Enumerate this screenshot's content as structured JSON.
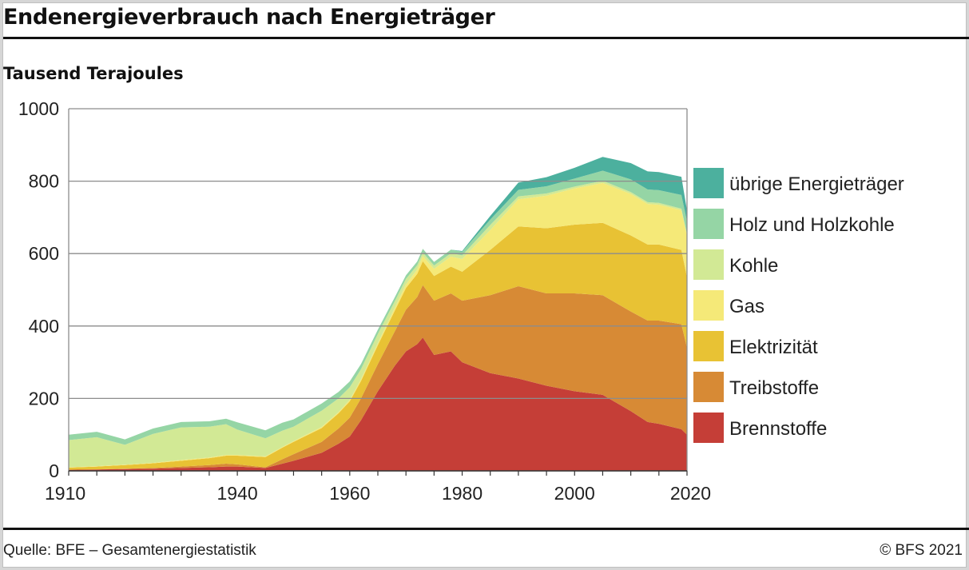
{
  "header": {
    "title": "Endenergieverbrauch nach Energieträger",
    "unit_label": "Tausend Terajoules"
  },
  "footer": {
    "source": "Quelle: BFE – Gesamtenergiestatistik",
    "copyright": "© BFS 2021"
  },
  "colors": {
    "Brennstoffe": "#c53e37",
    "Treibstoffe": "#d78a35",
    "Elektrizität": "#e8c234",
    "Gas": "#f5e978",
    "Kohle": "#d2e995",
    "Holz und Holzkohle": "#95d5a5",
    "übrige Energieträger": "#4cb09e"
  },
  "chart_data": {
    "type": "area",
    "stacked": true,
    "title": "Endenergieverbrauch nach Energieträger",
    "ylabel": "Tausend Terajoules",
    "xlabel": "",
    "xlim": [
      1910,
      2020
    ],
    "ylim": [
      0,
      1000
    ],
    "y_ticks": [
      0,
      200,
      400,
      600,
      800,
      1000
    ],
    "x_ticks": [
      1910,
      1940,
      1960,
      1980,
      2000,
      2020
    ],
    "grid": true,
    "legend_position": "right",
    "legend_order": [
      "übrige Energieträger",
      "Holz und Holzkohle",
      "Kohle",
      "Gas",
      "Elektrizität",
      "Treibstoffe",
      "Brennstoffe"
    ],
    "x": [
      1910,
      1915,
      1920,
      1925,
      1930,
      1935,
      1938,
      1940,
      1945,
      1948,
      1950,
      1955,
      1958,
      1960,
      1962,
      1965,
      1968,
      1970,
      1972,
      1973,
      1975,
      1978,
      1980,
      1985,
      1990,
      1995,
      2000,
      2005,
      2010,
      2013,
      2015,
      2019,
      2020
    ],
    "series": [
      {
        "name": "Brennstoffe",
        "values": [
          3,
          4,
          5,
          6,
          8,
          10,
          12,
          12,
          8,
          20,
          28,
          50,
          75,
          95,
          140,
          220,
          290,
          330,
          350,
          368,
          320,
          330,
          300,
          270,
          255,
          235,
          220,
          210,
          165,
          135,
          130,
          115,
          100
        ]
      },
      {
        "name": "Treibstoffe",
        "values": [
          0,
          0,
          1,
          2,
          4,
          6,
          8,
          6,
          2,
          12,
          18,
          30,
          42,
          52,
          60,
          75,
          95,
          115,
          130,
          145,
          150,
          160,
          170,
          215,
          255,
          255,
          270,
          275,
          275,
          280,
          285,
          290,
          240
        ]
      },
      {
        "name": "Elektrizität",
        "values": [
          6,
          8,
          10,
          13,
          16,
          19,
          22,
          24,
          28,
          32,
          34,
          38,
          42,
          45,
          48,
          52,
          57,
          60,
          64,
          66,
          68,
          74,
          80,
          125,
          165,
          180,
          190,
          200,
          210,
          210,
          210,
          205,
          195
        ]
      },
      {
        "name": "Gas",
        "values": [
          1,
          1,
          1,
          1,
          2,
          2,
          2,
          2,
          2,
          2,
          2,
          3,
          3,
          4,
          5,
          6,
          8,
          10,
          12,
          14,
          20,
          28,
          35,
          55,
          75,
          90,
          100,
          110,
          115,
          112,
          110,
          110,
          115
        ]
      },
      {
        "name": "Kohle",
        "values": [
          75,
          80,
          55,
          80,
          90,
          85,
          85,
          70,
          50,
          45,
          40,
          45,
          38,
          35,
          28,
          25,
          18,
          15,
          12,
          10,
          9,
          9,
          10,
          14,
          8,
          6,
          5,
          6,
          5,
          5,
          5,
          4,
          4
        ]
      },
      {
        "name": "Holz und Holzkohle",
        "values": [
          15,
          15,
          15,
          15,
          15,
          15,
          15,
          20,
          22,
          22,
          20,
          20,
          18,
          16,
          14,
          12,
          11,
          10,
          10,
          10,
          10,
          10,
          10,
          15,
          18,
          20,
          22,
          28,
          35,
          35,
          35,
          38,
          35
        ]
      },
      {
        "name": "übrige Energieträger",
        "values": [
          0,
          0,
          0,
          0,
          0,
          0,
          0,
          0,
          0,
          0,
          0,
          0,
          0,
          0,
          0,
          0,
          0,
          0,
          0,
          0,
          0,
          0,
          2,
          10,
          20,
          25,
          30,
          38,
          45,
          50,
          50,
          50,
          30
        ]
      }
    ]
  }
}
